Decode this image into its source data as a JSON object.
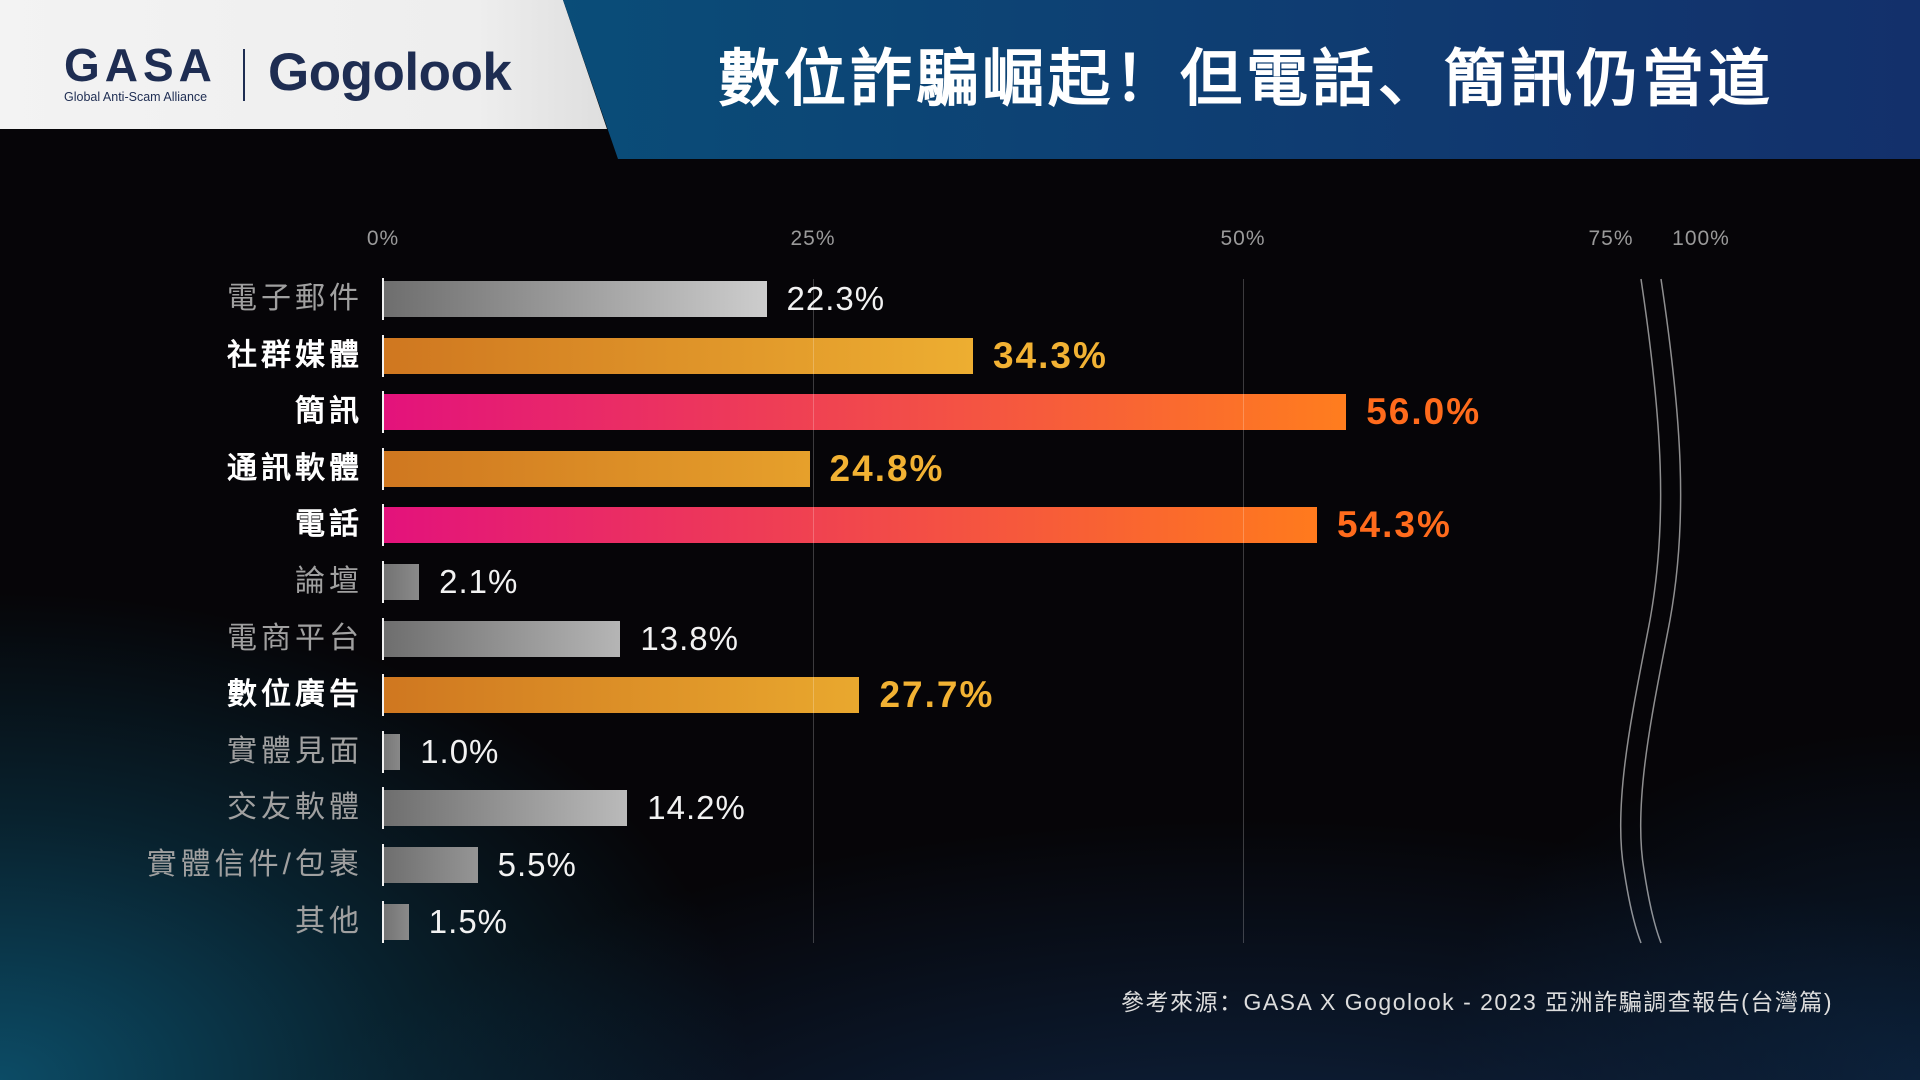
{
  "header": {
    "gasa_logo": "GASA",
    "gasa_tagline": "Global Anti-Scam Alliance",
    "gogolook_logo": "Gogolook",
    "title": "數位詐騙崛起！但電話、簡訊仍當道"
  },
  "colors": {
    "background": "#060508",
    "logo_panel": "#f3f3f3",
    "logo_navy": "#1e2d52",
    "banner_left": "#0a4d78",
    "banner_right": "#13306b",
    "title_text": "#ffffff",
    "gridline": "rgba(255,255,255,0.22)",
    "axis_tick_text": "#9a9a9a",
    "source_text": "#dddddd"
  },
  "chart_data": {
    "type": "bar",
    "orientation": "horizontal",
    "categories": [
      "電子郵件",
      "社群媒體",
      "簡訊",
      "通訊軟體",
      "電話",
      "論壇",
      "電商平台",
      "數位廣告",
      "實體見面",
      "交友軟體",
      "實體信件/包裹",
      "其他"
    ],
    "values": [
      22.3,
      34.3,
      56.0,
      24.8,
      54.3,
      2.1,
      13.8,
      27.7,
      1.0,
      14.2,
      5.5,
      1.5
    ],
    "value_labels": [
      "22.3%",
      "34.3%",
      "56.0%",
      "24.8%",
      "54.3%",
      "2.1%",
      "13.8%",
      "27.7%",
      "1.0%",
      "14.2%",
      "5.5%",
      "1.5%"
    ],
    "highlighted": [
      false,
      true,
      true,
      true,
      true,
      false,
      false,
      true,
      false,
      false,
      false,
      false
    ],
    "bar_colors": [
      [
        "#6e6e6e",
        "#cdcdcd"
      ],
      [
        "#cf7720",
        "#edae31"
      ],
      [
        "#e3127c",
        "#ff7d1e"
      ],
      [
        "#cf7720",
        "#e6a02b"
      ],
      [
        "#e3127c",
        "#ff7a1d"
      ],
      [
        "#727272",
        "#8a8a8a"
      ],
      [
        "#6e6e6e",
        "#b5b5b5"
      ],
      [
        "#cf7720",
        "#e9a82e"
      ],
      [
        "#777777",
        "#888888"
      ],
      [
        "#6e6e6e",
        "#bababa"
      ],
      [
        "#6e6e6e",
        "#959595"
      ],
      [
        "#737373",
        "#8a8a8a"
      ]
    ],
    "value_label_colors": [
      "#f2f2f2",
      "#f2b233",
      "#ff6b1c",
      "#f2b233",
      "#ff6b1c",
      "#f2f2f2",
      "#f2f2f2",
      "#f2b233",
      "#f2f2f2",
      "#f2f2f2",
      "#f2f2f2",
      "#f2f2f2"
    ],
    "category_label_colors": [
      "#a0a0a0",
      "#ffffff",
      "#ffffff",
      "#ffffff",
      "#ffffff",
      "#a0a0a0",
      "#a0a0a0",
      "#ffffff",
      "#a0a0a0",
      "#a0a0a0",
      "#a0a0a0",
      "#a0a0a0"
    ],
    "x_tick_values": [
      0,
      25,
      50,
      75,
      100
    ],
    "x_tick_labels": [
      "0%",
      "25%",
      "50%",
      "75%",
      "100%"
    ],
    "xlim": [
      0,
      100
    ],
    "grid_values": [
      25,
      50
    ],
    "axis_break": true
  },
  "source": "參考來源：GASA X Gogolook - 2023 亞洲詐騙調查報告(台灣篇)"
}
